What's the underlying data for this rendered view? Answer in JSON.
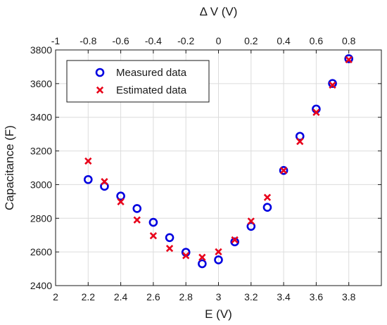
{
  "chart_data": {
    "type": "scatter",
    "xlabel": "E (V)",
    "x2label": "Δ V (V)",
    "ylabel": "Capacitance (F)",
    "xlim": [
      2,
      4
    ],
    "x2lim": [
      -1,
      1
    ],
    "ylim": [
      2400,
      3800
    ],
    "x_ticks": [
      "2",
      "2.2",
      "2.4",
      "2.6",
      "2.8",
      "3",
      "3.2",
      "3.4",
      "3.6",
      "3.8"
    ],
    "x2_ticks": [
      "-1",
      "-0.8",
      "-0.6",
      "-0.4",
      "-0.2",
      "0",
      "0.2",
      "0.4",
      "0.6",
      "0.8"
    ],
    "y_ticks": [
      "2400",
      "2600",
      "2800",
      "3000",
      "3200",
      "3400",
      "3600",
      "3800"
    ],
    "grid": true,
    "legend_position": "top-left",
    "x": [
      2.2,
      2.3,
      2.4,
      2.5,
      2.6,
      2.7,
      2.8,
      2.9,
      3.0,
      3.1,
      3.2,
      3.3,
      3.4,
      3.5,
      3.6,
      3.7,
      3.8
    ],
    "series": [
      {
        "name": "Measured data",
        "marker": "circle",
        "color": "#0000e0",
        "values": [
          3030,
          2990,
          2932,
          2858,
          2776,
          2685,
          2598,
          2530,
          2553,
          2660,
          2752,
          2865,
          3084,
          3287,
          3449,
          3601,
          3748
        ]
      },
      {
        "name": "Estimated data",
        "marker": "x",
        "color": "#e8001a",
        "values": [
          3140,
          3018,
          2898,
          2790,
          2696,
          2621,
          2578,
          2568,
          2601,
          2672,
          2783,
          2924,
          3084,
          3256,
          3429,
          3591,
          3742
        ]
      }
    ]
  }
}
